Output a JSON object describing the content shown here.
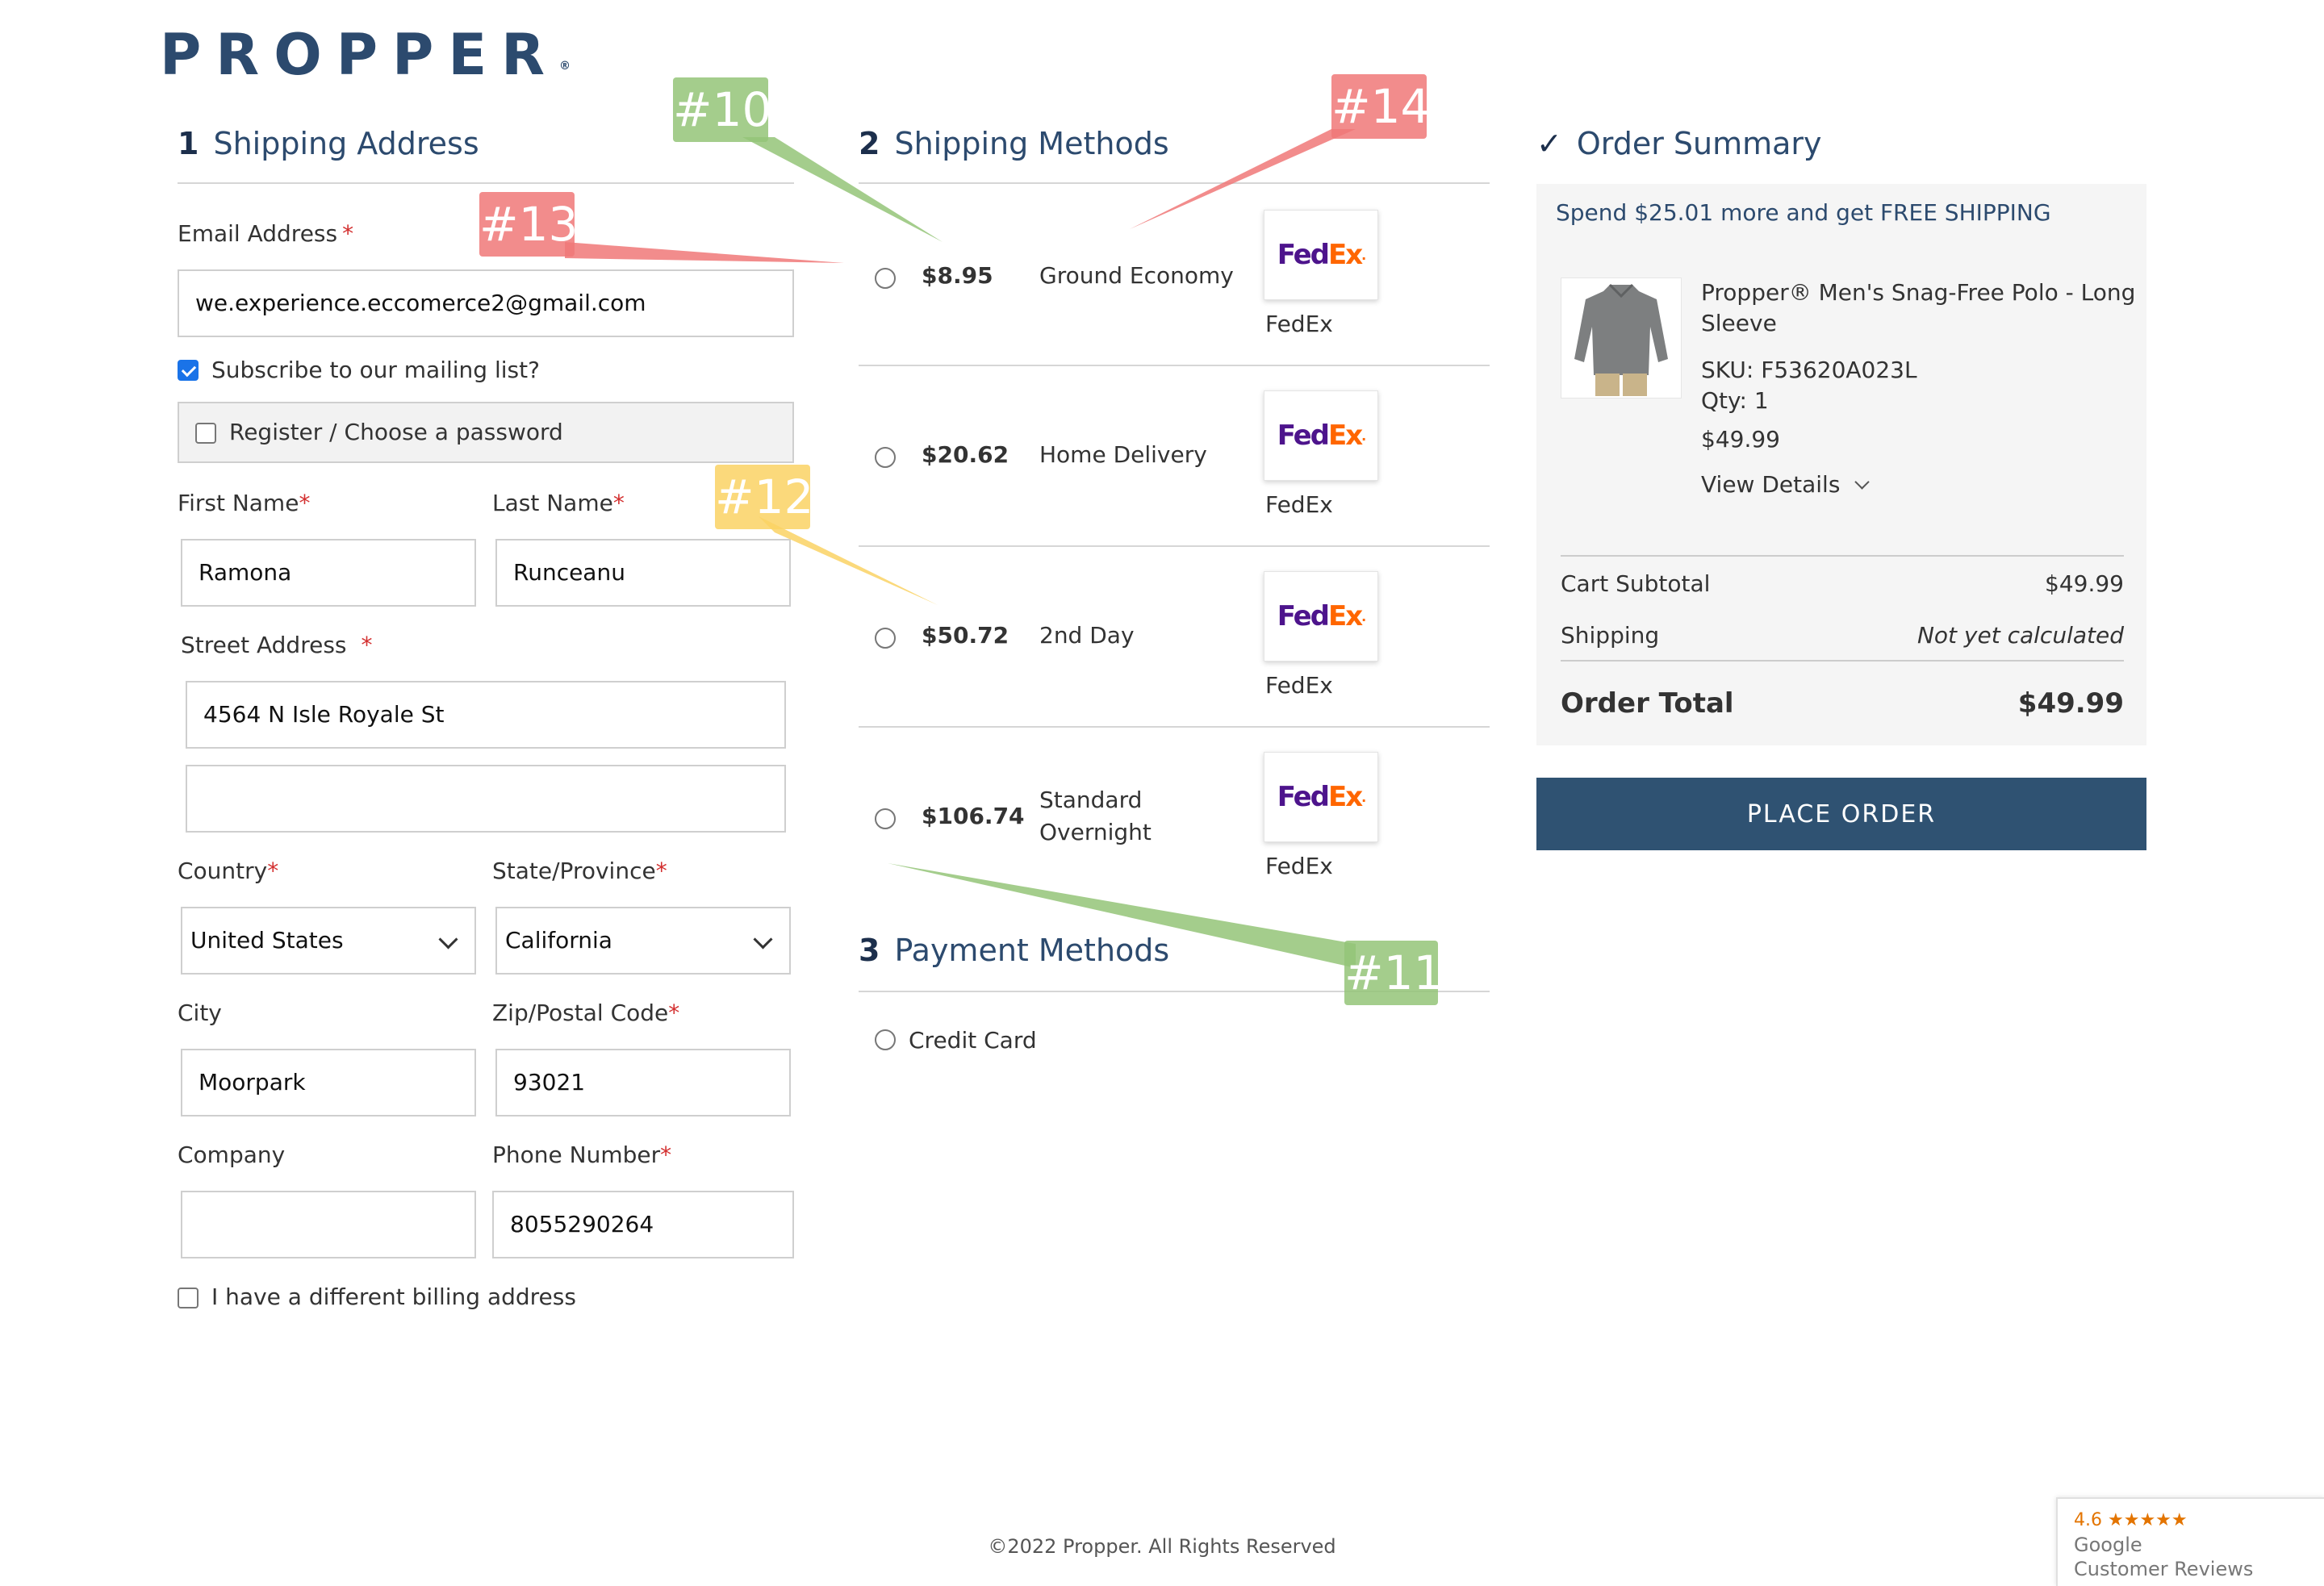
{
  "brand": {
    "logo_text": "PROPPER",
    "reg_mark": "®"
  },
  "shipping_address": {
    "step": "1",
    "title": "Shipping Address",
    "email_label": "Email Address",
    "email_value": "we.experience.eccomerce2@gmail.com",
    "subscribe_label": "Subscribe to our mailing list?",
    "subscribe_checked": true,
    "register_label": "Register / Choose a password",
    "first_name_label": "First Name",
    "first_name_value": "Ramona",
    "last_name_label": "Last Name",
    "last_name_value": "Runceanu",
    "street_label": "Street Address",
    "street_value_1": "4564 N Isle Royale St",
    "street_value_2": "",
    "country_label": "Country",
    "country_value": "United States",
    "state_label": "State/Province",
    "state_value": "California",
    "city_label": "City",
    "city_value": "Moorpark",
    "zip_label": "Zip/Postal Code",
    "zip_value": "93021",
    "company_label": "Company",
    "company_value": "",
    "phone_label": "Phone Number",
    "phone_value": "8055290264",
    "billing_label": "I have a different billing address",
    "required_mark": "*"
  },
  "shipping_methods": {
    "step": "2",
    "title": "Shipping Methods",
    "options": [
      {
        "price": "$8.95",
        "name": "Ground Economy",
        "carrier": "FedEx"
      },
      {
        "price": "$20.62",
        "name": "Home Delivery",
        "carrier": "FedEx"
      },
      {
        "price": "$50.72",
        "name": "2nd Day",
        "carrier": "FedEx"
      },
      {
        "price": "$106.74",
        "name_line1": "Standard",
        "name_line2": "Overnight",
        "carrier": "FedEx"
      }
    ],
    "logo_fe": "Fed",
    "logo_ex": "Ex",
    "logo_dot": "."
  },
  "payment_methods": {
    "step": "3",
    "title": "Payment Methods",
    "option": "Credit Card"
  },
  "order_summary": {
    "check": "✓",
    "title": "Order Summary",
    "promo": "Spend $25.01 more and get FREE SHIPPING",
    "product_name_line1": "Propper® Men's Snag-Free Polo - Long",
    "product_name_line2": "Sleeve",
    "sku": "SKU: F53620A023L",
    "qty": "Qty: 1",
    "price": "$49.99",
    "view_details": "View Details",
    "subtotal_label": "Cart Subtotal",
    "subtotal_value": "$49.99",
    "shipping_label": "Shipping",
    "shipping_value": "Not yet calculated",
    "total_label": "Order Total",
    "total_value": "$49.99",
    "place_order": "PLACE ORDER"
  },
  "footer": {
    "copyright": "©2022 Propper. All Rights Reserved"
  },
  "reviews_widget": {
    "score": "4.6",
    "stars": "★★★★★",
    "line1": "Google",
    "line2": "Customer Reviews"
  },
  "annotations": [
    "#10",
    "#11",
    "#12",
    "#13",
    "#14"
  ],
  "colors": {
    "brand_navy": "#2c4a6e",
    "button": "#2f5272",
    "required": "#d32f2f",
    "fedex_purple": "#4d148c",
    "fedex_orange": "#ff6600",
    "annotation_green": "#94c478",
    "annotation_red": "#f07878",
    "annotation_yellow": "#fad264"
  }
}
